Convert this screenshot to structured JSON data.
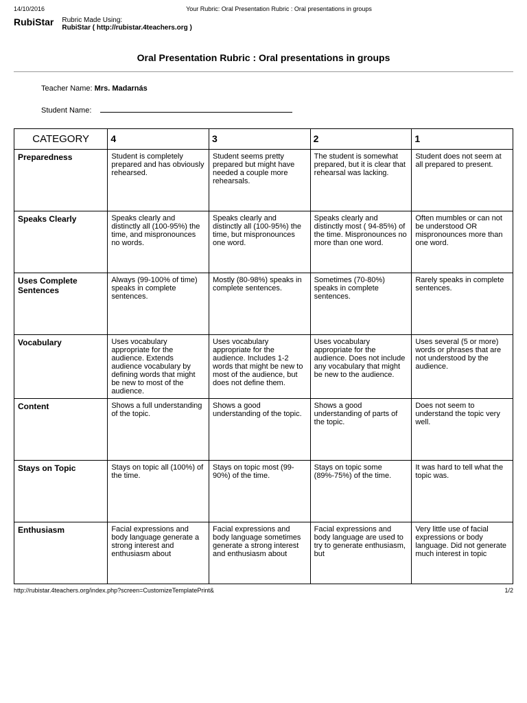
{
  "header": {
    "date": "14/10/2016",
    "doctitle": "Your Rubric: Oral Presentation Rubric : Oral presentations in groups"
  },
  "brand": {
    "name": "RubiStar",
    "made_label": "Rubric Made Using:",
    "made_source": "RubiStar ( http://rubistar.4teachers.org )"
  },
  "title": "Oral Presentation Rubric : Oral presentations in groups",
  "teacher": {
    "label": "Teacher Name: ",
    "name": "Mrs. Madarnás"
  },
  "student": {
    "label": "Student Name:"
  },
  "table": {
    "headers": [
      "CATEGORY",
      "4",
      "3",
      "2",
      "1"
    ],
    "rows": [
      {
        "category": "Preparedness",
        "cells": [
          "Student is completely prepared and has obviously rehearsed.",
          "Student seems pretty prepared but might have needed a couple more rehearsals.",
          "The student is somewhat prepared, but it is clear that rehearsal was lacking.",
          "Student does not seem at all prepared to present."
        ]
      },
      {
        "category": "Speaks Clearly",
        "cells": [
          "Speaks clearly and distinctly all (100-95%) the time, and mispronounces no words.",
          "Speaks clearly and distinctly all (100-95%) the time, but mispronounces one word.",
          "Speaks clearly and distinctly most ( 94-85%) of the time. Mispronounces no more than one word.",
          "Often mumbles or can not be understood OR mispronounces more than one word."
        ]
      },
      {
        "category": "Uses Complete Sentences",
        "cells": [
          "Always (99-100% of time) speaks in complete sentences.",
          "Mostly (80-98%) speaks in complete sentences.",
          "Sometimes (70-80%) speaks in complete sentences.",
          "Rarely speaks in complete sentences."
        ]
      },
      {
        "category": "Vocabulary",
        "cells": [
          "Uses vocabulary appropriate for the audience. Extends audience vocabulary by defining words that might be new to most of the audience.",
          "Uses vocabulary appropriate for the audience. Includes 1-2 words that might be new to most of the audience, but does not define them.",
          "Uses vocabulary appropriate for the audience. Does not include any vocabulary that might be new to the audience.",
          "Uses several (5 or more) words or phrases that are not understood by the audience."
        ]
      },
      {
        "category": "Content",
        "cells": [
          "Shows a full understanding of the topic.",
          "Shows a good understanding of the topic.",
          "Shows a good understanding of parts of the topic.",
          "Does not seem to understand the topic very well."
        ]
      },
      {
        "category": "Stays on Topic",
        "cells": [
          "Stays on topic all (100%) of the time.",
          "Stays on topic most (99-90%) of the time.",
          "Stays on topic some (89%-75%) of the time.",
          "It was hard to tell what the topic was."
        ]
      },
      {
        "category": "Enthusiasm",
        "cells": [
          "Facial expressions and body language generate a strong interest and enthusiasm about",
          "Facial expressions and body language sometimes generate a strong interest and enthusiasm about",
          "Facial expressions and body language are used to try to generate enthusiasm, but",
          "Very little use of facial expressions or body language. Did not generate much interest in topic"
        ]
      }
    ]
  },
  "footer": {
    "url": "http://rubistar.4teachers.org/index.php?screen=CustomizeTemplatePrint&",
    "page": "1/2"
  }
}
